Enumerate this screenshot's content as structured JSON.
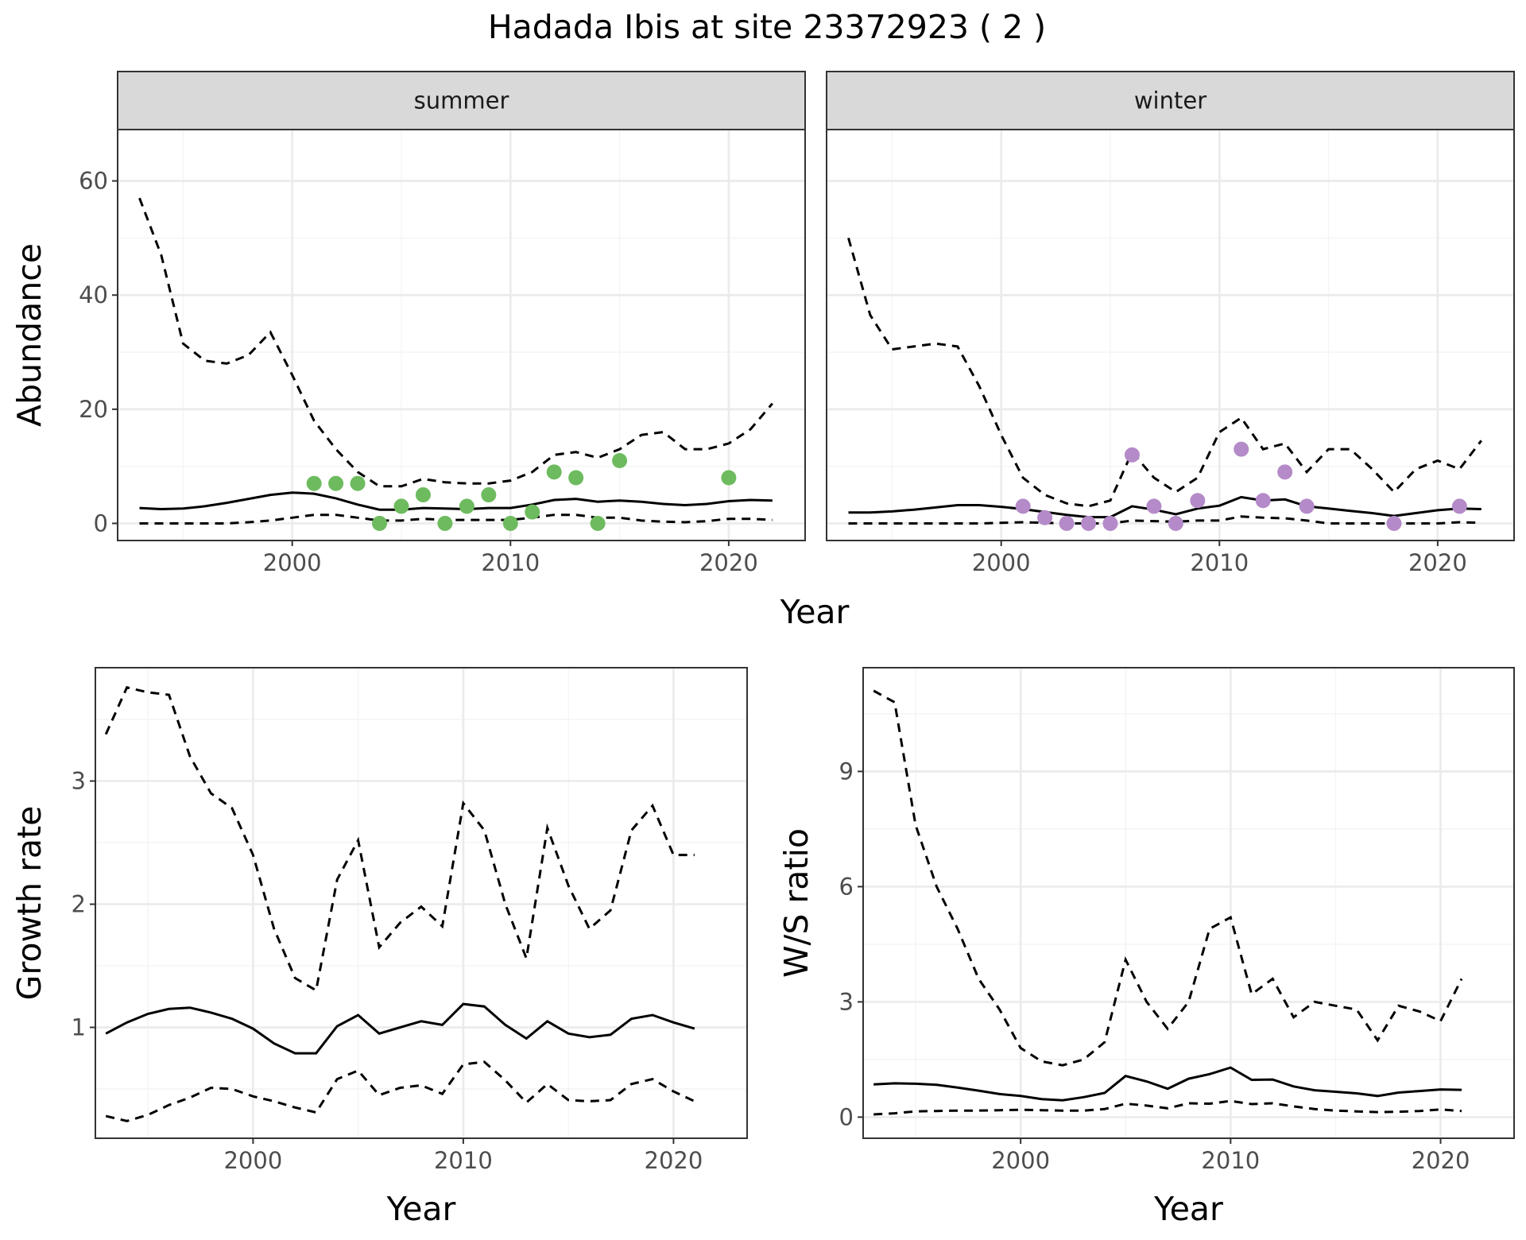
{
  "title": "Hadada Ibis at site 23372923 ( 2 )",
  "chart_data": [
    {
      "id": "abundance-summer",
      "type": "line",
      "strip": "summer",
      "xlabel": "",
      "ylabel": "Abundance",
      "xlim": [
        1992,
        2023.5
      ],
      "ylim": [
        -3,
        69
      ],
      "xticks": [
        2000,
        2010,
        2020
      ],
      "yticks": [
        0,
        20,
        40,
        60
      ],
      "show_yticks": true,
      "point_color": "#6dbb5e",
      "x": [
        1993,
        1994,
        1995,
        1996,
        1997,
        1998,
        1999,
        2000,
        2001,
        2002,
        2003,
        2004,
        2005,
        2006,
        2007,
        2008,
        2009,
        2010,
        2011,
        2012,
        2013,
        2014,
        2015,
        2016,
        2017,
        2018,
        2019,
        2020,
        2021,
        2022
      ],
      "mean": [
        2.7,
        2.5,
        2.6,
        3.0,
        3.6,
        4.3,
        5.0,
        5.4,
        5.2,
        4.4,
        3.3,
        2.4,
        2.4,
        2.7,
        2.6,
        2.5,
        2.7,
        2.7,
        3.3,
        4.1,
        4.3,
        3.8,
        4.0,
        3.8,
        3.4,
        3.2,
        3.4,
        3.9,
        4.1,
        4.0
      ],
      "upper": [
        57,
        47,
        31.5,
        28.5,
        28,
        29.5,
        33.5,
        26,
        18,
        13,
        9,
        6.5,
        6.5,
        7.8,
        7.2,
        7,
        7,
        7.5,
        9,
        12,
        12.5,
        11.5,
        13,
        15.5,
        16,
        13,
        13,
        14,
        16.5,
        21
      ],
      "lower": [
        0,
        0,
        0,
        0,
        0,
        0.2,
        0.5,
        1,
        1.5,
        1.5,
        1,
        0.5,
        0.5,
        0.8,
        0.6,
        0.6,
        0.6,
        0.6,
        1,
        1.5,
        1.5,
        1,
        1,
        0.5,
        0.3,
        0.2,
        0.4,
        0.8,
        0.8,
        0.6
      ],
      "points": [
        [
          2001,
          7
        ],
        [
          2002,
          7
        ],
        [
          2003,
          7
        ],
        [
          2004,
          0
        ],
        [
          2005,
          3
        ],
        [
          2006,
          5
        ],
        [
          2007,
          0
        ],
        [
          2008,
          3
        ],
        [
          2009,
          5
        ],
        [
          2010,
          0
        ],
        [
          2011,
          2
        ],
        [
          2012,
          9
        ],
        [
          2013,
          8
        ],
        [
          2014,
          0
        ],
        [
          2015,
          11
        ],
        [
          2020,
          8
        ]
      ]
    },
    {
      "id": "abundance-winter",
      "type": "line",
      "strip": "winter",
      "xlabel": "",
      "ylabel": "",
      "xlim": [
        1992,
        2023.5
      ],
      "ylim": [
        -3,
        69
      ],
      "xticks": [
        2000,
        2010,
        2020
      ],
      "yticks": [
        0,
        20,
        40,
        60
      ],
      "show_yticks": false,
      "point_color": "#b48ac8",
      "x": [
        1993,
        1994,
        1995,
        1996,
        1997,
        1998,
        1999,
        2000,
        2001,
        2002,
        2003,
        2004,
        2005,
        2006,
        2007,
        2008,
        2009,
        2010,
        2011,
        2012,
        2013,
        2014,
        2015,
        2016,
        2017,
        2018,
        2019,
        2020,
        2021,
        2022
      ],
      "mean": [
        1.9,
        1.9,
        2.1,
        2.4,
        2.8,
        3.2,
        3.2,
        2.9,
        2.5,
        2.0,
        1.5,
        1.1,
        1.1,
        3.0,
        2.4,
        1.6,
        2.6,
        3.1,
        4.6,
        4.0,
        4.2,
        3.0,
        2.6,
        2.2,
        1.8,
        1.3,
        1.8,
        2.3,
        2.6,
        2.5
      ],
      "upper": [
        50,
        36.5,
        30.5,
        31,
        31.5,
        31,
        24,
        15.5,
        8,
        5,
        3.5,
        3,
        4,
        12.5,
        8,
        5.5,
        8,
        16,
        18.5,
        13,
        14,
        9,
        13,
        13,
        9.5,
        5.5,
        9.5,
        11,
        9.5,
        14.5
      ],
      "lower": [
        0,
        0,
        0,
        0,
        0,
        0,
        0,
        0.1,
        0.2,
        0.1,
        0,
        0,
        0,
        0.5,
        0.4,
        0.3,
        0.5,
        0.5,
        1.2,
        1,
        0.9,
        0.5,
        0,
        0,
        0,
        0,
        0,
        0,
        0.2,
        0.1
      ],
      "points": [
        [
          2001,
          3
        ],
        [
          2002,
          1
        ],
        [
          2003,
          0
        ],
        [
          2004,
          0
        ],
        [
          2005,
          0
        ],
        [
          2006,
          12
        ],
        [
          2007,
          3
        ],
        [
          2008,
          0
        ],
        [
          2009,
          4
        ],
        [
          2011,
          13
        ],
        [
          2012,
          4
        ],
        [
          2013,
          9
        ],
        [
          2014,
          3
        ],
        [
          2018,
          0
        ],
        [
          2021,
          3
        ]
      ]
    },
    {
      "id": "growth-rate",
      "type": "line",
      "xlabel": "Year",
      "ylabel": "Growth rate",
      "xlim": [
        1992.5,
        2023.5
      ],
      "ylim": [
        0.1,
        3.92
      ],
      "xticks": [
        2000,
        2010,
        2020
      ],
      "yticks": [
        1,
        2,
        3
      ],
      "show_yticks": true,
      "x": [
        1993,
        1994,
        1995,
        1996,
        1997,
        1998,
        1999,
        2000,
        2001,
        2002,
        2003,
        2004,
        2005,
        2006,
        2007,
        2008,
        2009,
        2010,
        2011,
        2012,
        2013,
        2014,
        2015,
        2016,
        2017,
        2018,
        2019,
        2020,
        2021
      ],
      "mean": [
        0.95,
        1.04,
        1.11,
        1.15,
        1.16,
        1.12,
        1.07,
        0.99,
        0.87,
        0.79,
        0.79,
        1.01,
        1.1,
        0.95,
        1.0,
        1.05,
        1.02,
        1.19,
        1.17,
        1.02,
        0.91,
        1.05,
        0.95,
        0.92,
        0.94,
        1.07,
        1.1,
        1.04,
        0.99
      ],
      "upper": [
        3.38,
        3.76,
        3.72,
        3.7,
        3.2,
        2.9,
        2.78,
        2.4,
        1.8,
        1.4,
        1.3,
        2.2,
        2.52,
        1.65,
        1.85,
        1.98,
        1.82,
        2.82,
        2.6,
        2.0,
        1.56,
        2.62,
        2.15,
        1.8,
        1.95,
        2.6,
        2.8,
        2.4,
        2.4
      ],
      "lower": [
        0.28,
        0.24,
        0.29,
        0.37,
        0.43,
        0.51,
        0.5,
        0.44,
        0.4,
        0.35,
        0.31,
        0.58,
        0.65,
        0.45,
        0.51,
        0.53,
        0.46,
        0.7,
        0.72,
        0.57,
        0.39,
        0.54,
        0.41,
        0.4,
        0.41,
        0.54,
        0.58,
        0.48,
        0.4
      ]
    },
    {
      "id": "ws-ratio",
      "type": "line",
      "xlabel": "Year",
      "ylabel": "W/S ratio",
      "xlim": [
        1992.5,
        2023.5
      ],
      "ylim": [
        -0.55,
        11.7
      ],
      "xticks": [
        2000,
        2010,
        2020
      ],
      "yticks": [
        0,
        3,
        6,
        9
      ],
      "show_yticks": true,
      "x": [
        1993,
        1994,
        1995,
        1996,
        1997,
        1998,
        1999,
        2000,
        2001,
        2002,
        2003,
        2004,
        2005,
        2006,
        2007,
        2008,
        2009,
        2010,
        2011,
        2012,
        2013,
        2014,
        2015,
        2016,
        2017,
        2018,
        2019,
        2020,
        2021
      ],
      "mean": [
        0.85,
        0.88,
        0.87,
        0.84,
        0.77,
        0.69,
        0.6,
        0.55,
        0.47,
        0.44,
        0.52,
        0.63,
        1.07,
        0.93,
        0.74,
        1.0,
        1.12,
        1.29,
        0.97,
        0.98,
        0.8,
        0.7,
        0.66,
        0.62,
        0.55,
        0.64,
        0.68,
        0.72,
        0.71
      ],
      "upper": [
        11.1,
        10.8,
        7.6,
        6.0,
        4.9,
        3.6,
        2.8,
        1.8,
        1.45,
        1.35,
        1.5,
        1.95,
        4.1,
        3.0,
        2.3,
        3.0,
        4.9,
        5.2,
        3.2,
        3.6,
        2.6,
        3.0,
        2.9,
        2.8,
        2.0,
        2.9,
        2.75,
        2.5,
        3.6
      ],
      "lower": [
        0.07,
        0.1,
        0.15,
        0.16,
        0.17,
        0.17,
        0.18,
        0.19,
        0.18,
        0.17,
        0.17,
        0.21,
        0.35,
        0.3,
        0.23,
        0.36,
        0.35,
        0.42,
        0.34,
        0.36,
        0.28,
        0.21,
        0.17,
        0.15,
        0.13,
        0.14,
        0.16,
        0.2,
        0.16
      ]
    }
  ],
  "shared_axis_titles": {
    "top_x": "Year"
  }
}
